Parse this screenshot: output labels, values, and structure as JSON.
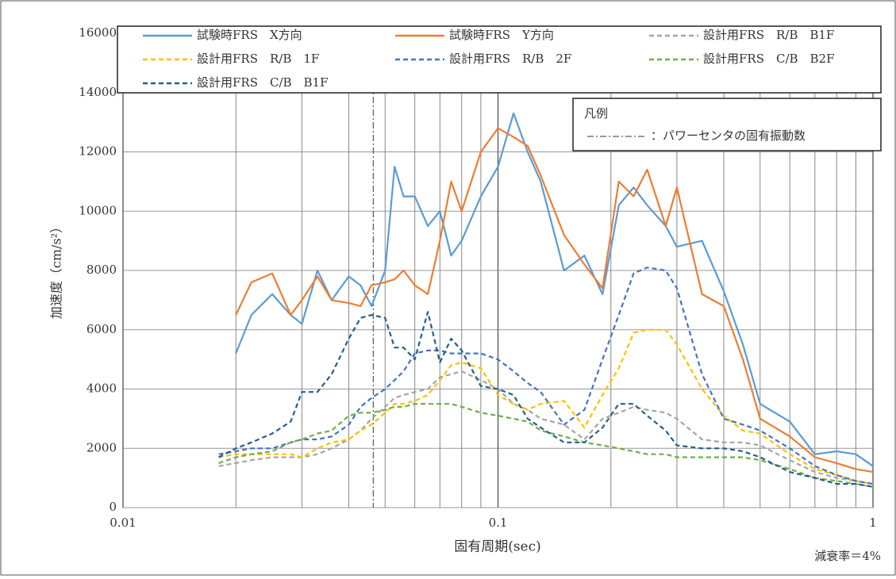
{
  "chart_data": {
    "type": "line",
    "xlabel": "固有周期(sec)",
    "ylabel": "加速度（cm/s²）",
    "note": "減衰率＝4%",
    "x_log": true,
    "grid": true,
    "xlim": [
      0.01,
      1
    ],
    "ylim": [
      0,
      16000
    ],
    "xticks": [
      0.01,
      0.1,
      1
    ],
    "xminor_ticks": [
      0.02,
      0.03,
      0.04,
      0.05,
      0.06,
      0.07,
      0.08,
      0.09,
      0.2,
      0.3,
      0.4,
      0.5,
      0.6,
      0.7,
      0.8,
      0.9
    ],
    "yticks": [
      0,
      2000,
      4000,
      6000,
      8000,
      10000,
      12000,
      14000,
      16000
    ],
    "x": [
      0.018,
      0.02,
      0.022,
      0.025,
      0.028,
      0.03,
      0.033,
      0.036,
      0.04,
      0.043,
      0.046,
      0.05,
      0.053,
      0.056,
      0.06,
      0.065,
      0.07,
      0.075,
      0.08,
      0.09,
      0.1,
      0.11,
      0.12,
      0.13,
      0.15,
      0.17,
      0.19,
      0.21,
      0.23,
      0.25,
      0.28,
      0.3,
      0.35,
      0.4,
      0.45,
      0.5,
      0.6,
      0.7,
      0.8,
      0.9,
      1.0
    ],
    "series": [
      {
        "name": "試験時FRS　X方向",
        "color": "#5b9bd5",
        "dashed": false,
        "values": [
          null,
          5200,
          6500,
          7200,
          6500,
          6200,
          8000,
          7000,
          7800,
          7500,
          6800,
          8000,
          11500,
          10500,
          10500,
          9500,
          10000,
          8500,
          9000,
          10500,
          11500,
          13300,
          12000,
          11000,
          8000,
          8500,
          7200,
          10200,
          10800,
          10200,
          9500,
          8800,
          9000,
          7300,
          5500,
          3500,
          2900,
          1800,
          1900,
          1800,
          1400
        ]
      },
      {
        "name": "試験時FRS　Y方向",
        "color": "#ed7d31",
        "dashed": false,
        "values": [
          null,
          6500,
          7600,
          7900,
          6500,
          7000,
          7800,
          7000,
          6900,
          6800,
          7500,
          7600,
          7700,
          8000,
          7500,
          7200,
          9000,
          11000,
          10000,
          12000,
          12800,
          12500,
          12200,
          11200,
          9200,
          8200,
          7400,
          11000,
          10500,
          11400,
          9500,
          10800,
          7200,
          6800,
          5000,
          3000,
          2400,
          1700,
          1500,
          1300,
          1200
        ]
      },
      {
        "name": "設計用FRS　R/B　B1F",
        "color": "#a5a5a5",
        "dashed": true,
        "values": [
          1400,
          1500,
          1600,
          1700,
          1700,
          1700,
          1800,
          2000,
          2300,
          2600,
          3000,
          3400,
          3700,
          3800,
          3900,
          4000,
          4400,
          4500,
          4600,
          4300,
          4000,
          3500,
          3300,
          3000,
          2800,
          2300,
          3000,
          3200,
          3400,
          3300,
          3200,
          3000,
          2300,
          2200,
          2200,
          2100,
          1600,
          1200,
          1000,
          900,
          800
        ]
      },
      {
        "name": "設計用FRS　R/B　1F",
        "color": "#ffc000",
        "dashed": true,
        "values": [
          1700,
          1800,
          1800,
          1800,
          1800,
          1700,
          2000,
          2200,
          2300,
          2600,
          2800,
          3200,
          3500,
          3500,
          3600,
          3800,
          4300,
          4800,
          4900,
          4700,
          3800,
          3500,
          3300,
          3500,
          3600,
          2700,
          3800,
          4700,
          5900,
          6000,
          6000,
          5500,
          4000,
          3100,
          2600,
          2500,
          1800,
          1300,
          1100,
          900,
          800
        ]
      },
      {
        "name": "設計用FRS　R/B　2F",
        "color": "#4472c4",
        "dashed": true,
        "values": [
          1800,
          1900,
          2000,
          2000,
          2200,
          2300,
          2300,
          2400,
          2800,
          3400,
          3700,
          4000,
          4300,
          4600,
          5200,
          5300,
          5300,
          5200,
          5200,
          5200,
          5000,
          4600,
          4200,
          3900,
          2800,
          3300,
          5000,
          6500,
          7900,
          8100,
          8000,
          7400,
          4500,
          3000,
          2800,
          2600,
          2000,
          1400,
          1100,
          900,
          800
        ]
      },
      {
        "name": "設計用FRS　C/B　B2F",
        "color": "#70ad47",
        "dashed": true,
        "values": [
          1500,
          1700,
          1800,
          1900,
          2200,
          2300,
          2500,
          2600,
          3100,
          3200,
          3200,
          3300,
          3400,
          3400,
          3500,
          3500,
          3500,
          3500,
          3400,
          3200,
          3100,
          3000,
          2900,
          2600,
          2400,
          2200,
          2100,
          2000,
          1900,
          1800,
          1800,
          1700,
          1700,
          1700,
          1700,
          1600,
          1300,
          1000,
          900,
          800,
          700
        ]
      },
      {
        "name": "設計用FRS　C/B　B1F",
        "color": "#255e91",
        "dashed": true,
        "values": [
          1700,
          2000,
          2200,
          2500,
          2900,
          3900,
          3900,
          4500,
          5700,
          6400,
          6500,
          6400,
          5400,
          5400,
          5000,
          6600,
          4900,
          5700,
          5300,
          4100,
          4000,
          3800,
          3000,
          2700,
          2200,
          2200,
          2700,
          3500,
          3500,
          3100,
          2600,
          2100,
          2000,
          2000,
          1900,
          1700,
          1200,
          1000,
          800,
          800,
          700
        ]
      }
    ],
    "reference": {
      "title": "凡例",
      "label": "：パワーセンタの固有振動数",
      "x": 0.0465,
      "color": "#555555"
    }
  }
}
